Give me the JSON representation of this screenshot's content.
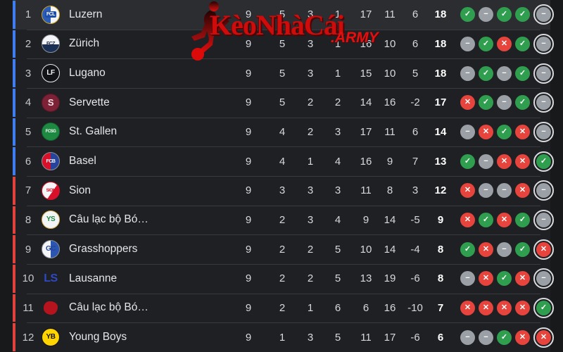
{
  "watermark": {
    "brand": "KèoNhàCái",
    "suffix": ".ARMY"
  },
  "colors": {
    "win": "#2f9e4f",
    "draw": "#9aa0a6",
    "loss": "#e6443c",
    "zone_blue": "#3f7ef0",
    "zone_red": "#e2423c",
    "ring": "#d9dbde",
    "row_bg": "#1f2023",
    "row_highlight": "#2c2d31",
    "watermark_red": "#cf0c0c"
  },
  "form_glyphs": {
    "w": "✓",
    "d": "−",
    "l": "✕"
  },
  "table": {
    "rows": [
      {
        "pos": "1",
        "team": "Luzern",
        "zone": "blue",
        "highlight": true,
        "badge": {
          "label": "FCL",
          "bg": "linear-gradient(90deg,#2a5cb8 50%,#f3f5f8 50%)",
          "fg": "#ffffff",
          "labelBg": "#1d4fa8",
          "border": "#c9a227",
          "fs": 7
        },
        "p": "9",
        "w": "5",
        "d": "3",
        "l": "1",
        "gf": "17",
        "ga": "11",
        "gd": "6",
        "pts": "18",
        "form": [
          "w",
          "d",
          "w",
          "w",
          "d"
        ]
      },
      {
        "pos": "2",
        "team": "Zürich",
        "zone": "blue",
        "highlight": false,
        "badge": {
          "label": "FCZ",
          "bg": "linear-gradient(180deg,#f3f5f8 55%,#1a2f55 55%)",
          "fg": "#1a2747",
          "border": "#8a8f98",
          "fs": 7
        },
        "p": "9",
        "w": "5",
        "d": "3",
        "l": "1",
        "gf": "16",
        "ga": "10",
        "gd": "6",
        "pts": "18",
        "form": [
          "d",
          "w",
          "l",
          "w",
          "d"
        ]
      },
      {
        "pos": "3",
        "team": "Lugano",
        "zone": "blue",
        "highlight": false,
        "badge": {
          "label": "LF",
          "bg": "#121316",
          "fg": "#f2f3f5",
          "border": "#e8eaee",
          "fs": 10
        },
        "p": "9",
        "w": "5",
        "d": "3",
        "l": "1",
        "gf": "15",
        "ga": "10",
        "gd": "5",
        "pts": "18",
        "form": [
          "d",
          "w",
          "d",
          "w",
          "d"
        ]
      },
      {
        "pos": "4",
        "team": "Servette",
        "zone": "blue",
        "highlight": false,
        "badge": {
          "label": "S",
          "bg": "#7c2136",
          "fg": "#f4dfe5",
          "border": "#5d1626",
          "fs": 13
        },
        "p": "9",
        "w": "5",
        "d": "2",
        "l": "2",
        "gf": "14",
        "ga": "16",
        "gd": "-2",
        "pts": "17",
        "form": [
          "l",
          "w",
          "d",
          "w",
          "d"
        ]
      },
      {
        "pos": "5",
        "team": "St. Gallen",
        "zone": "blue",
        "highlight": false,
        "badge": {
          "label": "FCSG",
          "bg": "#1e8a41",
          "fg": "#ffffff",
          "border": "#136330",
          "fs": 6
        },
        "p": "9",
        "w": "4",
        "d": "2",
        "l": "3",
        "gf": "17",
        "ga": "11",
        "gd": "6",
        "pts": "14",
        "form": [
          "d",
          "l",
          "w",
          "l",
          "d"
        ]
      },
      {
        "pos": "6",
        "team": "Basel",
        "zone": "blue",
        "highlight": false,
        "badge": {
          "label": "FCB",
          "bg": "linear-gradient(90deg,#d8102a 50%,#27449c 50%)",
          "fg": "#ffffff",
          "border": "#8a8f98",
          "fs": 7
        },
        "p": "9",
        "w": "4",
        "d": "1",
        "l": "4",
        "gf": "16",
        "ga": "9",
        "gd": "7",
        "pts": "13",
        "form": [
          "w",
          "d",
          "l",
          "l",
          "w"
        ]
      },
      {
        "pos": "7",
        "team": "Sion",
        "zone": "red",
        "highlight": false,
        "badge": {
          "label": "SION",
          "bg": "linear-gradient(125deg,#f5f6f8 58%,#d8102a 58%)",
          "fg": "#d8102a",
          "border": "#d8102a",
          "fs": 6
        },
        "p": "9",
        "w": "3",
        "d": "3",
        "l": "3",
        "gf": "11",
        "ga": "8",
        "gd": "3",
        "pts": "12",
        "form": [
          "l",
          "d",
          "d",
          "l",
          "d"
        ]
      },
      {
        "pos": "8",
        "team": "Câu lạc bộ Bó…",
        "zone": "red",
        "highlight": false,
        "badge": {
          "label": "YS",
          "bg": "#f2f4f6",
          "fg": "#1f8a3d",
          "border": "#d8b24a",
          "fs": 10
        },
        "p": "9",
        "w": "2",
        "d": "3",
        "l": "4",
        "gf": "9",
        "ga": "14",
        "gd": "-5",
        "pts": "9",
        "form": [
          "l",
          "w",
          "l",
          "w",
          "d"
        ]
      },
      {
        "pos": "9",
        "team": "Grasshoppers",
        "zone": "red",
        "highlight": false,
        "badge": {
          "label": "GC",
          "bg": "linear-gradient(90deg,#f3f5f8 50%,#2a55b0 50%)",
          "fg": "#24439c",
          "border": "#8a8f98",
          "fs": 10
        },
        "p": "9",
        "w": "2",
        "d": "2",
        "l": "5",
        "gf": "10",
        "ga": "14",
        "gd": "-4",
        "pts": "8",
        "form": [
          "w",
          "l",
          "d",
          "w",
          "l"
        ]
      },
      {
        "pos": "10",
        "team": "Lausanne",
        "zone": "red",
        "highlight": false,
        "badge": {
          "label": "LS",
          "bg": "transparent",
          "fg": "#2d49c4",
          "border": "transparent",
          "fs": 16
        },
        "p": "9",
        "w": "2",
        "d": "2",
        "l": "5",
        "gf": "13",
        "ga": "19",
        "gd": "-6",
        "pts": "8",
        "form": [
          "d",
          "l",
          "w",
          "l",
          "d"
        ]
      },
      {
        "pos": "11",
        "team": "Câu lạc bộ Bó…",
        "zone": "red",
        "highlight": false,
        "badge": {
          "label": "",
          "bg": "#b5131e",
          "fg": "#ffffff",
          "border": "transparent",
          "fs": 8,
          "blob": true
        },
        "p": "9",
        "w": "2",
        "d": "1",
        "l": "6",
        "gf": "6",
        "ga": "16",
        "gd": "-10",
        "pts": "7",
        "form": [
          "l",
          "l",
          "l",
          "l",
          "w"
        ]
      },
      {
        "pos": "12",
        "team": "Young Boys",
        "zone": "red",
        "highlight": false,
        "badge": {
          "label": "YB",
          "bg": "#ffd400",
          "fg": "#131313",
          "border": "#131313",
          "fs": 10
        },
        "p": "9",
        "w": "1",
        "d": "3",
        "l": "5",
        "gf": "11",
        "ga": "17",
        "gd": "-6",
        "pts": "6",
        "form": [
          "d",
          "d",
          "w",
          "l",
          "l"
        ]
      }
    ]
  }
}
